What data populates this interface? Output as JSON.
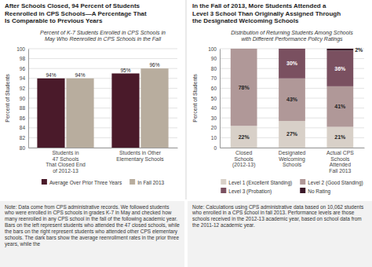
{
  "chart_data": [
    {
      "type": "bar",
      "title": "After Schools Closed, 94 Percent of Students\nReenrolled in CPS Schools—A Percentage That\nIs Comparable to Previous Years",
      "subtitle": "Percent of K-7 Students Enrolled in CPS Schools in\nMay Who Reenrolled in CPS Schools in the Fall",
      "ylabel": "Percent of Students",
      "categories": [
        "Students in\n47 Schools\nThat Closed End\nof 2012-13",
        "Students in Other\nElementary Schools"
      ],
      "series": [
        {
          "name": "Average Over Prior Three Years",
          "color": "#4a1a2a",
          "values": [
            94,
            95
          ],
          "value_labels": [
            "94%",
            "95%"
          ]
        },
        {
          "name": "In Fall 2013",
          "color": "#b8ad9e",
          "values": [
            94,
            96
          ],
          "value_labels": [
            "94%",
            "96%"
          ]
        }
      ],
      "ylim": [
        80,
        100
      ],
      "yticks": [
        80,
        82,
        84,
        86,
        88,
        90,
        92,
        94,
        96,
        98,
        100
      ],
      "grid": true,
      "legend": "bottom",
      "data_labels": true,
      "annotations": [
        "Note: Data come from CPS administrative records. We followed students who were enrolled in CPS schools in grades K-7 in May and checked how many reenrolled in any CPS school in the fall of the following academic year. Bars on the left represent students who attended the 47 closed schools, while the bars on the right represent students who attended other CPS elementary schools. The dark bars show the average reenrollment rates in the prior three years, while the"
      ]
    },
    {
      "type": "bar",
      "stacked": true,
      "title": "In the Fall of 2013, More Students Attended a\nLevel 3 School Than Originally Assigned Through\nthe Designated Welcoming Schools",
      "subtitle": "Distribution of Returning Students Among Schools\nwith Different Performance Policy Ratings",
      "ylabel": "Percent of Students",
      "categories": [
        "Closed\nSchools\n(2012-13)",
        "Designated\nWelcoming\nSchools",
        "Actual CPS\nSchools\nAttended\nFall 2013"
      ],
      "series": [
        {
          "name": "Level 1 (Excellent Standing)",
          "color": "#d8d0c8",
          "values": [
            22,
            27,
            21
          ],
          "value_labels": [
            "22%",
            "27%",
            "21%"
          ]
        },
        {
          "name": "Level 2 (Good Standing)",
          "color": "#b09898",
          "values": [
            78,
            43,
            41
          ],
          "value_labels": [
            "78%",
            "43%",
            "41%"
          ]
        },
        {
          "name": "Level 3 (Probation)",
          "color": "#7a5060",
          "values": [
            0,
            30,
            36
          ],
          "value_labels": [
            null,
            "30%",
            "36%"
          ]
        },
        {
          "name": "No Rating",
          "color": "#3a1828",
          "values": [
            0,
            0,
            2
          ],
          "value_labels": [
            null,
            null,
            "2%"
          ]
        }
      ],
      "ylim": [
        0,
        100
      ],
      "yticks": [
        0,
        10,
        20,
        30,
        40,
        50,
        60,
        70,
        80,
        90,
        100
      ],
      "grid": true,
      "legend": "bottom",
      "data_labels": true,
      "annotations": [
        "Note: Calculations using CPS administrative data based on 10,062 students who enrolled in a CPS school in fall 2013. Performance levels are those schools received in the 2012-13 academic year, based on school data from the 2011-12 academic year."
      ]
    }
  ]
}
